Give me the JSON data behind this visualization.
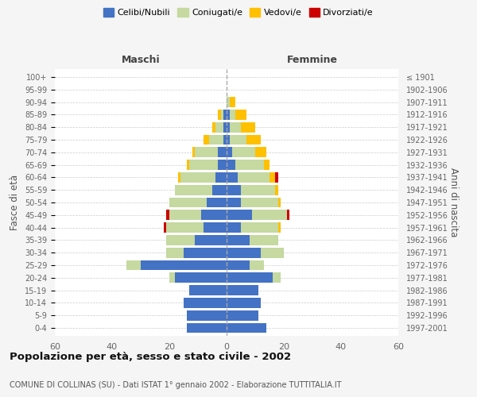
{
  "age_groups": [
    "0-4",
    "5-9",
    "10-14",
    "15-19",
    "20-24",
    "25-29",
    "30-34",
    "35-39",
    "40-44",
    "45-49",
    "50-54",
    "55-59",
    "60-64",
    "65-69",
    "70-74",
    "75-79",
    "80-84",
    "85-89",
    "90-94",
    "95-99",
    "100+"
  ],
  "birth_years": [
    "1997-2001",
    "1992-1996",
    "1987-1991",
    "1982-1986",
    "1977-1981",
    "1972-1976",
    "1967-1971",
    "1962-1966",
    "1957-1961",
    "1952-1956",
    "1947-1951",
    "1942-1946",
    "1937-1941",
    "1932-1936",
    "1927-1931",
    "1922-1926",
    "1917-1921",
    "1912-1916",
    "1907-1911",
    "1902-1906",
    "≤ 1901"
  ],
  "male": {
    "celibi": [
      14,
      14,
      15,
      13,
      18,
      30,
      15,
      11,
      8,
      9,
      7,
      5,
      4,
      3,
      3,
      1,
      1,
      1,
      0,
      0,
      0
    ],
    "coniugati": [
      0,
      0,
      0,
      0,
      2,
      5,
      6,
      10,
      13,
      11,
      13,
      13,
      12,
      10,
      8,
      5,
      3,
      1,
      0,
      0,
      0
    ],
    "vedovi": [
      0,
      0,
      0,
      0,
      0,
      0,
      0,
      0,
      0,
      0,
      0,
      0,
      1,
      1,
      1,
      2,
      1,
      1,
      0,
      0,
      0
    ],
    "divorziati": [
      0,
      0,
      0,
      0,
      0,
      0,
      0,
      0,
      1,
      1,
      0,
      0,
      0,
      0,
      0,
      0,
      0,
      0,
      0,
      0,
      0
    ]
  },
  "female": {
    "nubili": [
      14,
      11,
      12,
      11,
      16,
      8,
      12,
      8,
      5,
      9,
      5,
      5,
      4,
      3,
      2,
      1,
      1,
      1,
      0,
      0,
      0
    ],
    "coniugate": [
      0,
      0,
      0,
      0,
      3,
      5,
      8,
      10,
      13,
      12,
      13,
      12,
      11,
      10,
      8,
      6,
      4,
      2,
      1,
      0,
      0
    ],
    "vedove": [
      0,
      0,
      0,
      0,
      0,
      0,
      0,
      0,
      1,
      0,
      1,
      1,
      2,
      2,
      4,
      5,
      5,
      4,
      2,
      0,
      0
    ],
    "divorziate": [
      0,
      0,
      0,
      0,
      0,
      0,
      0,
      0,
      0,
      1,
      0,
      0,
      1,
      0,
      0,
      0,
      0,
      0,
      0,
      0,
      0
    ]
  },
  "colors": {
    "celibi": "#4472c4",
    "coniugati": "#c5d9a0",
    "vedovi": "#ffc000",
    "divorziati": "#cc0000"
  },
  "xlim": 60,
  "title": "Popolazione per età, sesso e stato civile - 2002",
  "subtitle": "COMUNE DI COLLINAS (SU) - Dati ISTAT 1° gennaio 2002 - Elaborazione TUTTITALIA.IT",
  "ylabel": "Fasce di età",
  "right_label": "Anni di nascita",
  "background_color": "#f5f5f5",
  "bar_background": "#ffffff"
}
